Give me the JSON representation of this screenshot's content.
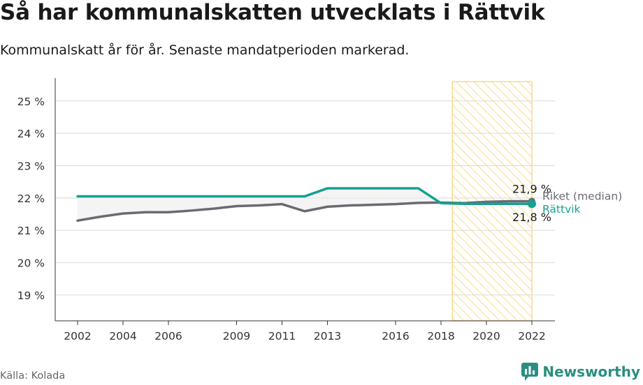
{
  "header": {
    "title": "Så har kommunalskatten utvecklats i Rättvik",
    "subtitle": "Kommunalskatt år för år. Senaste mandatperioden markerad."
  },
  "footer": {
    "source": "Källa: Kolada",
    "brand": "Newsworthy"
  },
  "colors": {
    "rattvik": "#14a193",
    "riket": "#6b6a72",
    "highlight": "#fcd98a",
    "grid": "#d9d9d9"
  },
  "chart_data": {
    "type": "line",
    "title": "Så har kommunalskatten utvecklats i Rättvik",
    "ylim": [
      18.2,
      25.6
    ],
    "xlim": [
      2002,
      2022
    ],
    "x_ticks": [
      2002,
      2004,
      2006,
      2009,
      2011,
      2013,
      2016,
      2018,
      2020,
      2022
    ],
    "y_ticks": [
      {
        "value": 19,
        "label": "19 %"
      },
      {
        "value": 20,
        "label": "20 %"
      },
      {
        "value": 21,
        "label": "21 %"
      },
      {
        "value": 22,
        "label": "22 %"
      },
      {
        "value": 23,
        "label": "23 %"
      },
      {
        "value": 24,
        "label": "24 %"
      },
      {
        "value": 25,
        "label": "25 %"
      }
    ],
    "highlight_period": [
      2018.5,
      2022
    ],
    "grid": true,
    "x": [
      2002,
      2003,
      2004,
      2005,
      2006,
      2007,
      2008,
      2009,
      2010,
      2011,
      2012,
      2013,
      2014,
      2015,
      2016,
      2017,
      2018,
      2019,
      2020,
      2021,
      2022
    ],
    "series": [
      {
        "name": "Riket (median)",
        "key": "riket",
        "values": [
          21.3,
          21.42,
          21.52,
          21.56,
          21.56,
          21.61,
          21.67,
          21.75,
          21.77,
          21.81,
          21.59,
          21.73,
          21.77,
          21.79,
          21.81,
          21.85,
          21.86,
          21.84,
          21.88,
          21.9,
          21.9
        ],
        "end_label": "21,9 %"
      },
      {
        "name": "Rättvik",
        "key": "rattvik",
        "values": [
          22.05,
          22.05,
          22.05,
          22.05,
          22.05,
          22.05,
          22.05,
          22.05,
          22.05,
          22.05,
          22.05,
          22.3,
          22.3,
          22.3,
          22.3,
          22.3,
          21.84,
          21.82,
          21.82,
          21.82,
          21.82
        ],
        "end_label": "21,8 %"
      }
    ]
  }
}
